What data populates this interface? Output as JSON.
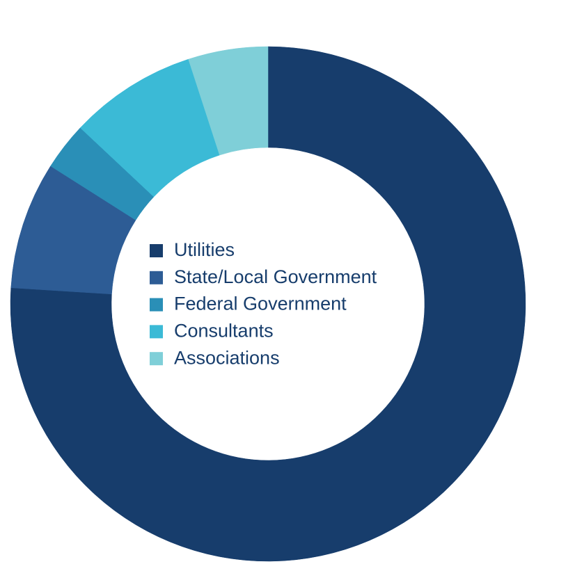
{
  "chart_data": {
    "type": "pie",
    "donut": true,
    "categories": [
      "Utilities",
      "State/Local Government",
      "Federal Government",
      "Consultants",
      "Associations"
    ],
    "values": [
      76,
      8,
      3,
      8,
      5
    ],
    "colors": [
      "#173d6c",
      "#2d5c95",
      "#2a8fb7",
      "#3bbad6",
      "#7fcfd8"
    ]
  }
}
